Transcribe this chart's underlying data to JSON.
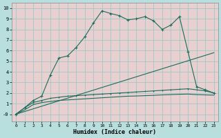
{
  "xlabel": "Humidex (Indice chaleur)",
  "bg_color": "#b8dede",
  "plot_bg_color": "#e8d0d0",
  "grid_color": "#a0c8c8",
  "line_color": "#1a6b5a",
  "xlim": [
    -0.5,
    23.5
  ],
  "ylim": [
    -0.7,
    10.5
  ],
  "xticks": [
    0,
    1,
    2,
    3,
    4,
    5,
    6,
    7,
    8,
    9,
    10,
    11,
    12,
    13,
    14,
    15,
    16,
    17,
    18,
    19,
    20,
    21,
    22,
    23
  ],
  "yticks": [
    0,
    1,
    2,
    3,
    4,
    5,
    6,
    7,
    8,
    9,
    10
  ],
  "line1_x": [
    0,
    23
  ],
  "line1_y": [
    0.0,
    5.8
  ],
  "line2_x": [
    0,
    1,
    2,
    3,
    4,
    5,
    6,
    7,
    8,
    9,
    10,
    11,
    12,
    13,
    14,
    15,
    16,
    17,
    18,
    19,
    20,
    21,
    22,
    23
  ],
  "line2_y": [
    0.0,
    0.6,
    1.1,
    1.3,
    1.5,
    1.6,
    1.7,
    1.75,
    1.8,
    1.85,
    1.9,
    1.95,
    2.0,
    2.05,
    2.1,
    2.15,
    2.2,
    2.25,
    2.3,
    2.35,
    2.4,
    2.3,
    2.2,
    2.0
  ],
  "line3_x": [
    0,
    1,
    2,
    3,
    4,
    5,
    6,
    7,
    8,
    9,
    10,
    11,
    12,
    13,
    14,
    15,
    16,
    17,
    18,
    19,
    20,
    21,
    22,
    23
  ],
  "line3_y": [
    0.0,
    0.4,
    0.9,
    1.1,
    1.2,
    1.3,
    1.35,
    1.4,
    1.45,
    1.5,
    1.55,
    1.6,
    1.65,
    1.7,
    1.72,
    1.75,
    1.78,
    1.82,
    1.85,
    1.88,
    1.9,
    1.85,
    1.82,
    1.8
  ],
  "line4_x": [
    0,
    1,
    2,
    3,
    4,
    5,
    6,
    7,
    8,
    9,
    10,
    11,
    12,
    13,
    14,
    15,
    16,
    17,
    18,
    19,
    20,
    21,
    22,
    23
  ],
  "line4_y": [
    0.0,
    0.6,
    1.3,
    1.7,
    3.7,
    5.3,
    5.5,
    6.3,
    7.3,
    8.6,
    9.75,
    9.5,
    9.3,
    8.9,
    9.0,
    9.2,
    8.8,
    8.0,
    8.4,
    9.2,
    5.9,
    2.6,
    2.3,
    2.0
  ]
}
